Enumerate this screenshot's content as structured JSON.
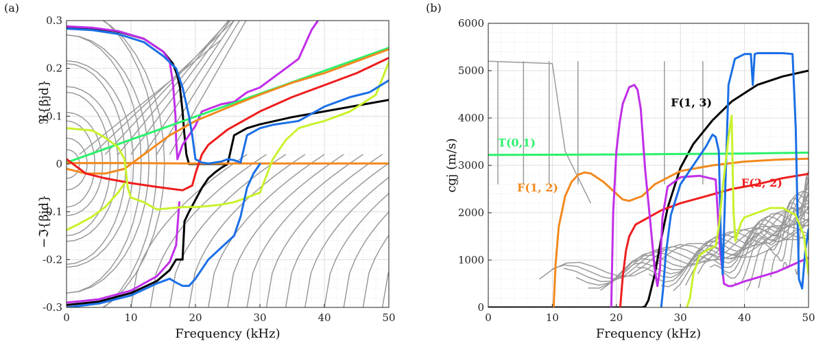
{
  "colors": {
    "gray": "#9a9a9a",
    "black": "#000000",
    "magenta": "#c12ee8",
    "green": "#2af26a",
    "orange": "#f2891e",
    "red": "#ee1c1c",
    "yellow": "#c9f22c",
    "blue": "#1a6fe6"
  },
  "chart_data": [
    {
      "panel": "(a)",
      "type": "line",
      "xlabel": "Frequency (kHz)",
      "ylabel_upper": "ℜ{βjd}",
      "ylabel_lower": "−ℑ{βjd}",
      "xlim": [
        0,
        50
      ],
      "ylim": [
        -0.3,
        0.3
      ],
      "xticks": [
        "0",
        "10",
        "20",
        "30",
        "40",
        "50"
      ],
      "yticks": [
        "-0.3",
        "-0.2",
        "-0.1",
        "0",
        "0.1",
        "0.2",
        "0.3"
      ],
      "grid": true,
      "series": [
        {
          "color": "black",
          "x": [
            0,
            4,
            8,
            12,
            15,
            16.5,
            17.2,
            17.6,
            17.8,
            18,
            18.3,
            18.6,
            19,
            20,
            21,
            22,
            23,
            24,
            25,
            26,
            28,
            30,
            35,
            40,
            45,
            50
          ],
          "y": [
            0.287,
            0.284,
            0.277,
            0.262,
            0.235,
            0.21,
            0.185,
            0.16,
            0.135,
            0.11,
            0.06,
            0.02,
            0,
            0,
            0,
            0,
            0,
            0,
            0,
            0.06,
            0.075,
            0.083,
            0.098,
            0.11,
            0.122,
            0.134
          ]
        },
        {
          "color": "black",
          "x": [
            0,
            5,
            10,
            14,
            16,
            17,
            18,
            18.3,
            19,
            20,
            21,
            22,
            23,
            24,
            25
          ],
          "y": [
            -0.295,
            -0.288,
            -0.27,
            -0.245,
            -0.222,
            -0.2,
            -0.2,
            -0.12,
            -0.1,
            -0.075,
            -0.05,
            -0.03,
            -0.018,
            -0.008,
            0
          ]
        },
        {
          "color": "magenta",
          "x": [
            0,
            4,
            8,
            12,
            15,
            16,
            16.5,
            16.9,
            17,
            17.2,
            18,
            20,
            21,
            22,
            24,
            26,
            28,
            30,
            32,
            34,
            36,
            37,
            38,
            39
          ],
          "y": [
            0.288,
            0.285,
            0.278,
            0.262,
            0.235,
            0.215,
            0.17,
            0.1,
            0.05,
            0.01,
            0.04,
            0.08,
            0.11,
            0.115,
            0.125,
            0.13,
            0.15,
            0.16,
            0.18,
            0.2,
            0.22,
            0.25,
            0.28,
            0.3
          ]
        },
        {
          "color": "magenta",
          "x": [
            0,
            5,
            10,
            14,
            16,
            17,
            17.5
          ],
          "y": [
            -0.29,
            -0.283,
            -0.265,
            -0.235,
            -0.205,
            -0.17,
            -0.08
          ]
        },
        {
          "color": "green",
          "x": [
            0,
            50
          ],
          "y": [
            0.003,
            0.243
          ]
        },
        {
          "color": "orange",
          "x": [
            0,
            3,
            6,
            9,
            10,
            12,
            16,
            20,
            25,
            30,
            35,
            40,
            45,
            50
          ],
          "y": [
            -0.01,
            -0.02,
            -0.02,
            -0.01,
            0,
            0.02,
            0.06,
            0.09,
            0.118,
            0.145,
            0.17,
            0.19,
            0.215,
            0.24
          ]
        },
        {
          "color": "orange",
          "x": [
            0,
            10,
            20,
            30,
            40,
            50
          ],
          "y": [
            0.002,
            0.002,
            0.001,
            0.001,
            0.001,
            0.001
          ]
        },
        {
          "color": "red",
          "x": [
            0,
            3,
            6,
            10,
            14,
            18,
            19.5,
            20,
            20.5,
            21,
            22,
            25,
            30,
            35,
            40,
            45,
            50
          ],
          "y": [
            0.01,
            -0.02,
            -0.03,
            -0.04,
            -0.048,
            -0.055,
            -0.045,
            -0.02,
            0,
            0.02,
            0.04,
            0.072,
            0.11,
            0.14,
            0.165,
            0.19,
            0.222
          ]
        },
        {
          "color": "yellow",
          "x": [
            0,
            4,
            6,
            8,
            9,
            9.5,
            10,
            12,
            14,
            18,
            20,
            22,
            24,
            26,
            28,
            30,
            32,
            34,
            36,
            38,
            40,
            44,
            48,
            50
          ],
          "y": [
            0.075,
            0.07,
            0.055,
            0.035,
            0.01,
            -0.05,
            -0.07,
            -0.08,
            -0.095,
            -0.09,
            -0.09,
            -0.088,
            -0.085,
            -0.08,
            -0.07,
            -0.06,
            0.01,
            0.05,
            0.075,
            0.083,
            0.09,
            0.11,
            0.145,
            0.213
          ]
        },
        {
          "color": "yellow",
          "x": [
            0,
            2,
            4,
            6,
            8,
            9
          ],
          "y": [
            -0.138,
            -0.125,
            -0.11,
            -0.09,
            -0.06,
            -0.04
          ]
        },
        {
          "color": "blue",
          "x": [
            0,
            4,
            8,
            12,
            15,
            17,
            18,
            19,
            19.5,
            20,
            21,
            22,
            24,
            25,
            26,
            27,
            28,
            30,
            32,
            36,
            40,
            44,
            47,
            50
          ],
          "y": [
            0.283,
            0.28,
            0.272,
            0.255,
            0.226,
            0.2,
            0.16,
            0.1,
            0.06,
            0.01,
            0.003,
            0.001,
            0.005,
            0.01,
            0.008,
            0.003,
            0.06,
            0.075,
            0.082,
            0.09,
            0.12,
            0.14,
            0.15,
            0.175
          ]
        },
        {
          "color": "blue",
          "x": [
            0,
            5,
            10,
            14,
            16,
            17,
            18,
            19,
            20,
            21,
            22,
            24,
            26,
            27,
            28,
            29,
            30
          ],
          "y": [
            -0.3,
            -0.292,
            -0.275,
            -0.25,
            -0.24,
            -0.248,
            -0.255,
            -0.255,
            -0.24,
            -0.22,
            -0.2,
            -0.175,
            -0.15,
            -0.11,
            -0.05,
            -0.02,
            0
          ]
        }
      ]
    },
    {
      "panel": "(b)",
      "type": "line",
      "xlabel": "Frequency (kHz)",
      "ylabel": "cgj (m/s)",
      "xlim": [
        0,
        50
      ],
      "ylim": [
        0,
        6000
      ],
      "xticks": [
        "0",
        "10",
        "20",
        "30",
        "40",
        "50"
      ],
      "yticks": [
        "0",
        "1000",
        "2000",
        "3000",
        "4000",
        "5000",
        "6000"
      ],
      "grid": true,
      "annotations": [
        {
          "text": "F(1, 3)",
          "color": "black",
          "x": 28.5,
          "y": 4250
        },
        {
          "text": "T(0,1)",
          "color": "green",
          "x": 1.5,
          "y": 3400
        },
        {
          "text": "F(1, 2)",
          "color": "orange",
          "x": 4.5,
          "y": 2450
        },
        {
          "text": "F(2, 2)",
          "color": "red",
          "x": 39.5,
          "y": 2550
        }
      ],
      "series": [
        {
          "name": "F(1, 3)",
          "color": "black",
          "x": [
            0,
            24,
            24.5,
            25,
            26,
            27,
            28,
            30,
            32,
            35,
            38,
            42,
            46,
            50
          ],
          "y": [
            0,
            0,
            20,
            150,
            700,
            1450,
            2100,
            2950,
            3450,
            3950,
            4350,
            4700,
            4880,
            5000
          ]
        },
        {
          "name": "T(0,1)",
          "color": "green",
          "x": [
            0,
            10,
            20,
            30,
            40,
            50
          ],
          "y": [
            3220,
            3225,
            3230,
            3240,
            3250,
            3270
          ]
        },
        {
          "name": "F(1, 2)",
          "color": "orange",
          "x": [
            10.2,
            10.5,
            11,
            12,
            13,
            14,
            15,
            16,
            18,
            20,
            21,
            22,
            24,
            26,
            30,
            35,
            40,
            45,
            50
          ],
          "y": [
            0,
            900,
            1700,
            2350,
            2650,
            2800,
            2850,
            2830,
            2650,
            2400,
            2280,
            2250,
            2350,
            2600,
            2880,
            3000,
            3080,
            3120,
            3140
          ]
        },
        {
          "name": "F(2, 2)",
          "color": "red",
          "x": [
            20.6,
            21,
            21.5,
            22,
            23,
            25,
            27,
            30,
            34,
            38,
            42,
            46,
            50
          ],
          "y": [
            0,
            650,
            1200,
            1500,
            1750,
            1900,
            2050,
            2200,
            2350,
            2500,
            2600,
            2730,
            2820
          ]
        },
        {
          "color": "magenta",
          "x": [
            19.2,
            19.5,
            20,
            20.5,
            21,
            22,
            22.8,
            23.3,
            23.8,
            24.5,
            25.3,
            26,
            26.4,
            26.8,
            27.2,
            28,
            30,
            33,
            35.5,
            36.2,
            36.8,
            37.5,
            38,
            40,
            45,
            50
          ],
          "y": [
            0,
            2000,
            3300,
            3900,
            4300,
            4650,
            4700,
            4600,
            4200,
            2900,
            1800,
            800,
            450,
            800,
            1900,
            2550,
            2750,
            2780,
            2700,
            1200,
            500,
            450,
            450,
            550,
            750,
            1050
          ]
        },
        {
          "color": "blue",
          "x": [
            27,
            27.3,
            27.7,
            28.5,
            30,
            32,
            34,
            35,
            35.5,
            36,
            36.3,
            36.6,
            37,
            37.5,
            38.5,
            40,
            41,
            41.3,
            41.6,
            42,
            46,
            47.5,
            48,
            48.5,
            49,
            49.5,
            50
          ],
          "y": [
            0,
            400,
            1100,
            1950,
            2600,
            3000,
            3400,
            3650,
            3600,
            3300,
            1500,
            700,
            2500,
            4700,
            5250,
            5350,
            5350,
            4700,
            5350,
            5370,
            5370,
            5350,
            3800,
            600,
            400,
            1200,
            1650
          ]
        },
        {
          "color": "yellow",
          "x": [
            31,
            31.5,
            32,
            33,
            34,
            35.5,
            36,
            36.5,
            37,
            37.5,
            38,
            38.3,
            38.6,
            39,
            39.5,
            40,
            42,
            44,
            46,
            48,
            49.3,
            49.8,
            50
          ],
          "y": [
            0,
            200,
            700,
            1100,
            1200,
            1300,
            1700,
            2400,
            3000,
            3600,
            4050,
            2000,
            1400,
            1600,
            1800,
            1900,
            2000,
            2100,
            2100,
            1950,
            1500,
            900,
            700
          ]
        }
      ]
    }
  ]
}
